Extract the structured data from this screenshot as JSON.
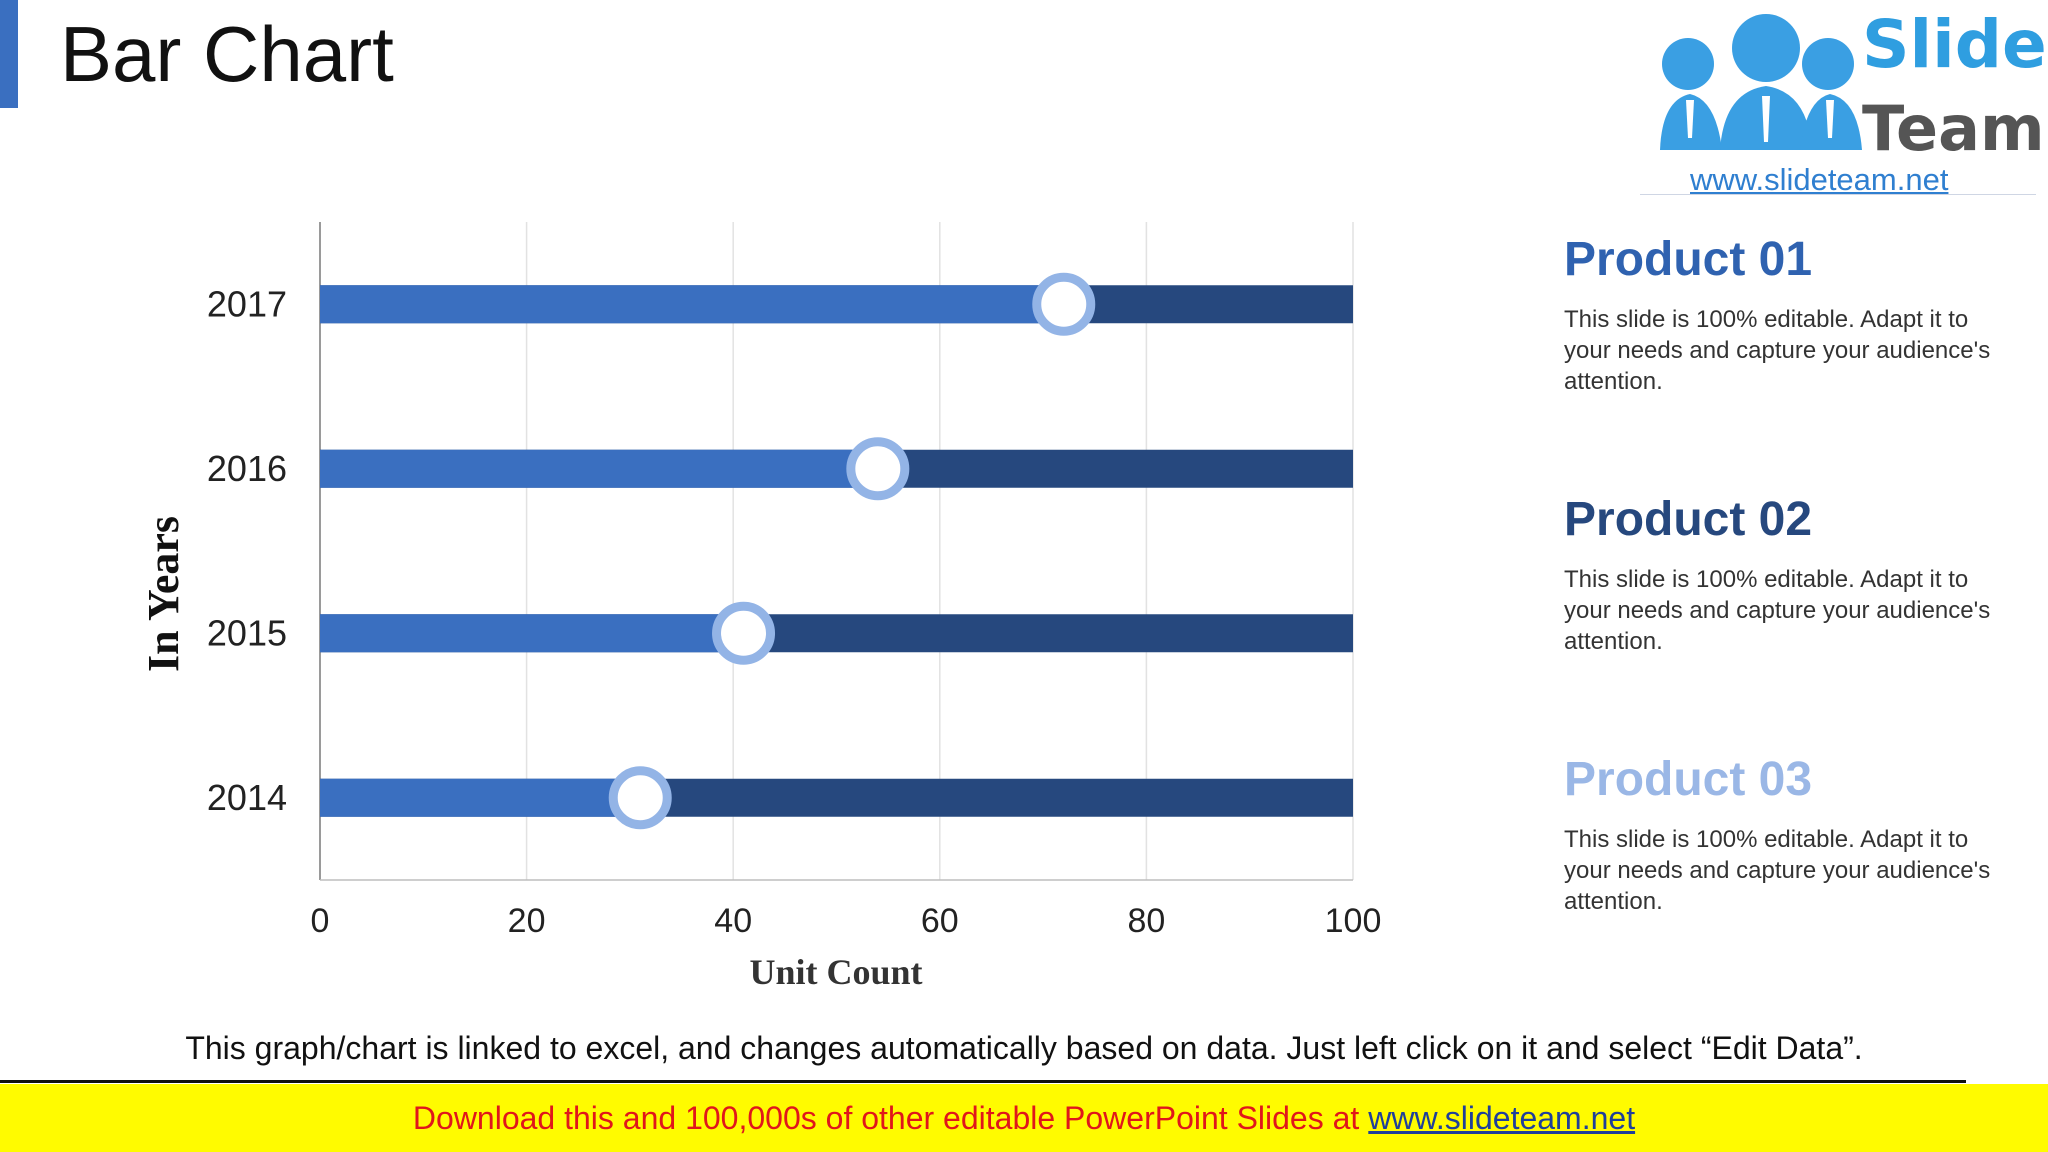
{
  "header": {
    "title": "Bar Chart"
  },
  "logo": {
    "name_line1": "Slide",
    "name_line2": "Team",
    "url": "www.slideteam.net"
  },
  "colors": {
    "accent": "#3a6fc0",
    "bar_progress": "#3a6fc0",
    "bar_remaining": "#26487e",
    "marker_ring": "#93b4e6",
    "product_01": "#2f62b0",
    "product_02": "#26487e",
    "product_03": "#9ab7e6"
  },
  "chart_data": {
    "type": "bar",
    "orientation": "horizontal",
    "categories": [
      "2017",
      "2016",
      "2015",
      "2014"
    ],
    "values": [
      72,
      54,
      41,
      31
    ],
    "max_values": [
      100,
      100,
      100,
      100
    ],
    "xlim": [
      0,
      100
    ],
    "xticks": [
      "0",
      "20",
      "40",
      "60",
      "80",
      "100"
    ],
    "xlabel": "Unit Count",
    "ylabel": "In Years",
    "grid": "vertical"
  },
  "products": [
    {
      "title": "Product 01",
      "description": "This slide is 100% editable. Adapt it to your needs and capture your audience's attention."
    },
    {
      "title": "Product 02",
      "description": "This slide is 100% editable. Adapt it to your needs and capture your audience's attention."
    },
    {
      "title": "Product 03",
      "description": "This slide is 100% editable. Adapt it to your needs and capture your audience's attention."
    }
  ],
  "footnote": "This graph/chart is linked to excel, and changes automatically based on data. Just left click on it and select “Edit Data”.",
  "download_banner": {
    "text": "Download this and 100,000s of other editable PowerPoint Slides at",
    "link": "www.slideteam.net"
  }
}
